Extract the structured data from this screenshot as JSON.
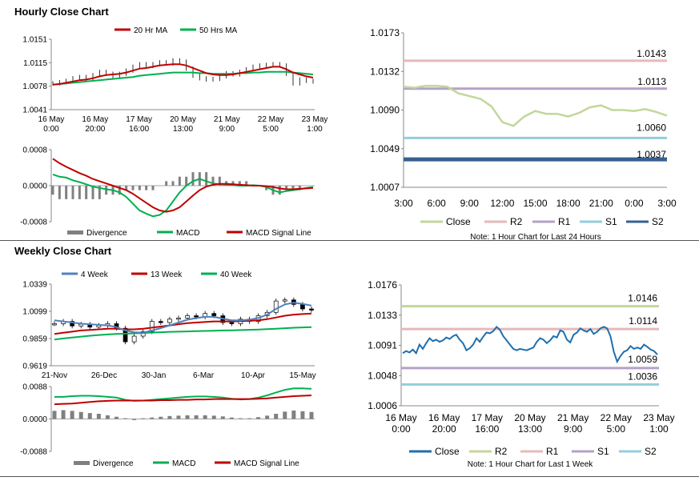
{
  "titles": {
    "hourly": "Hourly Close Chart",
    "weekly": "Weekly Close Chart"
  },
  "colors": {
    "ma_red": "#c00000",
    "ma_green": "#00b050",
    "macd_green": "#00b050",
    "signal_red": "#c00000",
    "divergence": "#808080",
    "close_light": "#c3d69b",
    "close_blue": "#1f6fad",
    "r2_pink": "#e6b9b8",
    "r1_purple": "#b3a2c7",
    "s1_cyan": "#93cddd",
    "s2_blue": "#376092",
    "w_4week": "#4f81bd",
    "w_13week": "#c00000",
    "w_40week": "#00b050"
  },
  "chart_data": [
    {
      "id": "hourly_price",
      "type": "candlestick",
      "legend": [
        "20 Hr MA",
        "50 Hrs MA"
      ],
      "legend_placement": "top",
      "y_ticks": [
        "1.0151",
        "1.0115",
        "1.0078",
        "1.0041"
      ],
      "ylim": [
        1.0041,
        1.0151
      ],
      "x_labels": [
        [
          "16 May",
          "0:00"
        ],
        [
          "16 May",
          "20:00"
        ],
        [
          "17 May",
          "16:00"
        ],
        [
          "20 May",
          "13:00"
        ],
        [
          "21 May",
          "9:00"
        ],
        [
          "22 May",
          "5:00"
        ],
        [
          "23 May",
          "1:00"
        ]
      ],
      "close": [
        1.0082,
        1.0084,
        1.0086,
        1.009,
        1.0092,
        1.0089,
        1.0095,
        1.01,
        1.0097,
        1.0093,
        1.0097,
        1.0102,
        1.0108,
        1.0112,
        1.0109,
        1.0112,
        1.0115,
        1.0113,
        1.0118,
        1.0116,
        1.0105,
        1.0094,
        1.009,
        1.0088,
        1.0089,
        1.0093,
        1.0098,
        1.0096,
        1.01,
        1.0104,
        1.0108,
        1.011,
        1.0111,
        1.0112,
        1.011,
        1.0097,
        1.0082,
        1.0088,
        1.0086,
        1.0085
      ],
      "ma20": [
        1.008,
        1.0081,
        1.0083,
        1.0085,
        1.0087,
        1.0088,
        1.009,
        1.0093,
        1.0095,
        1.0096,
        1.0097,
        1.0099,
        1.0102,
        1.0105,
        1.0106,
        1.0108,
        1.011,
        1.0111,
        1.0112,
        1.0112,
        1.011,
        1.0106,
        1.0102,
        1.0098,
        1.0096,
        1.0095,
        1.0095,
        1.0096,
        1.0098,
        1.01,
        1.0102,
        1.0104,
        1.0106,
        1.0108,
        1.0108,
        1.0104,
        1.0099,
        1.0096,
        1.0093,
        1.0091
      ],
      "ma50": [
        1.008,
        1.0081,
        1.0082,
        1.0083,
        1.0084,
        1.0085,
        1.0086,
        1.0087,
        1.0088,
        1.0089,
        1.009,
        1.0091,
        1.0092,
        1.0094,
        1.0095,
        1.0096,
        1.0097,
        1.0098,
        1.0099,
        1.0099,
        1.0099,
        1.0099,
        1.0098,
        1.0098,
        1.0097,
        1.0097,
        1.0097,
        1.0097,
        1.0098,
        1.0098,
        1.0099,
        1.0099,
        1.01,
        1.01,
        1.01,
        1.01,
        1.0099,
        1.0098,
        1.0097,
        1.0096
      ]
    },
    {
      "id": "hourly_macd",
      "type": "line",
      "legend": [
        "Divergence",
        "MACD",
        "MACD Signal Line"
      ],
      "legend_placement": "bottom",
      "y_ticks": [
        "0.0008",
        "0.0000",
        "-0.0008"
      ],
      "ylim": [
        -0.0008,
        0.0008
      ],
      "divergence": [
        -0.0002,
        -0.0003,
        -0.0003,
        -0.0003,
        -0.0003,
        -0.0003,
        -0.0003,
        -0.0003,
        -0.0002,
        -0.0002,
        -0.0002,
        -0.0001,
        -0.0001,
        -0.0001,
        -0.0001,
        -0.0001,
        0.0,
        0.0001,
        0.0001,
        0.0002,
        0.0002,
        0.0003,
        0.0003,
        0.0003,
        0.0002,
        0.0002,
        0.0001,
        0.0001,
        0.0001,
        0.0001,
        0.0,
        0.0,
        -0.0001,
        -0.0002,
        -0.0002,
        -0.0001,
        -0.0001,
        -0.0001,
        0.0,
        0.0
      ],
      "macd": [
        0.00025,
        0.0002,
        0.00018,
        0.00012,
        8e-05,
        3e-05,
        -2e-05,
        -5e-05,
        -8e-05,
        -0.0001,
        -0.00015,
        -0.00025,
        -0.0004,
        -0.00055,
        -0.00062,
        -0.00068,
        -0.00065,
        -0.00055,
        -0.00035,
        -0.00015,
        0.0,
        0.0001,
        0.00015,
        0.0001,
        5e-05,
        3e-05,
        2e-05,
        1e-05,
        0.0,
        0.0,
        1e-05,
        0.0,
        -3e-05,
        -0.0001,
        -0.00015,
        -0.00012,
        -0.0001,
        -8e-05,
        -5e-05,
        -3e-05
      ],
      "signal": [
        0.0006,
        0.0005,
        0.00042,
        0.00035,
        0.00028,
        0.00022,
        0.00015,
        0.0001,
        5e-05,
        0.0,
        -5e-05,
        -0.0001,
        -0.00018,
        -0.00028,
        -0.00038,
        -0.00048,
        -0.00055,
        -0.00058,
        -0.00055,
        -0.00048,
        -0.00035,
        -0.00022,
        -0.0001,
        -2e-05,
        2e-05,
        4e-05,
        4e-05,
        3e-05,
        2e-05,
        1e-05,
        0.0,
        0.0,
        -1e-05,
        -3e-05,
        -6e-05,
        -8e-05,
        -8e-05,
        -7e-05,
        -6e-05,
        -5e-05
      ]
    },
    {
      "id": "hourly_24h",
      "type": "line",
      "legend": [
        "Close",
        "R2",
        "R1",
        "S1",
        "S2"
      ],
      "legend_placement": "bottom",
      "note": "Note: 1 Hour Chart for Last 24 Hours",
      "y_ticks": [
        "1.0173",
        "1.0132",
        "1.0090",
        "1.0049",
        "1.0007"
      ],
      "ylim": [
        1.0007,
        1.0173
      ],
      "x_labels": [
        "3:00",
        "6:00",
        "9:00",
        "12:00",
        "15:00",
        "18:00",
        "21:00",
        "0:00",
        "3:00"
      ],
      "levels": {
        "R2": 1.0143,
        "R1": 1.0113,
        "S1": 1.006,
        "S2": 1.0037
      },
      "level_labels": [
        "1.0143",
        "1.0113",
        "1.0060",
        "1.0037"
      ],
      "close": [
        1.0115,
        1.0114,
        1.0116,
        1.0116,
        1.0115,
        1.0108,
        1.0105,
        1.0102,
        1.0094,
        1.0077,
        1.0073,
        1.0083,
        1.0089,
        1.0086,
        1.0086,
        1.0083,
        1.0087,
        1.0093,
        1.0095,
        1.009,
        1.009,
        1.0089,
        1.0091,
        1.0088,
        1.0084
      ]
    },
    {
      "id": "weekly_price",
      "type": "candlestick",
      "legend": [
        "4 Week",
        "13 Week",
        "40 Week"
      ],
      "legend_placement": "top",
      "y_ticks": [
        "1.0339",
        "1.0099",
        "0.9859",
        "0.9619"
      ],
      "ylim": [
        0.9619,
        1.0339
      ],
      "x_labels": [
        "21-Nov",
        "26-Dec",
        "30-Jan",
        "6-Mar",
        "10-Apr",
        "15-May"
      ],
      "close": [
        0.999,
        1.001,
        0.997,
        0.9985,
        0.996,
        0.9975,
        0.999,
        0.995,
        0.983,
        0.988,
        0.992,
        1.001,
        1.0,
        1.003,
        1.004,
        1.006,
        1.005,
        1.008,
        1.006,
        1.0,
        0.999,
        1.003,
        1.001,
        1.006,
        1.009,
        1.019,
        1.02,
        1.016,
        1.012,
        1.011
      ],
      "w4": [
        1.002,
        1.001,
        1.0,
        0.999,
        0.9985,
        0.998,
        0.9975,
        0.996,
        0.993,
        0.9915,
        0.991,
        0.993,
        0.995,
        0.9975,
        1.0,
        1.0025,
        1.004,
        1.005,
        1.005,
        1.0035,
        1.002,
        1.002,
        1.0025,
        1.004,
        1.007,
        1.012,
        1.016,
        1.0175,
        1.0165,
        1.015
      ],
      "w13": [
        0.99,
        0.991,
        0.992,
        0.993,
        0.9935,
        0.994,
        0.9945,
        0.9945,
        0.994,
        0.994,
        0.9945,
        0.9955,
        0.9965,
        0.9975,
        0.9985,
        0.9995,
        1.0,
        1.0005,
        1.001,
        1.001,
        1.001,
        1.0012,
        1.0015,
        1.002,
        1.003,
        1.0045,
        1.006,
        1.007,
        1.0075,
        1.008
      ],
      "w40": [
        0.985,
        0.986,
        0.9868,
        0.9876,
        0.9884,
        0.989,
        0.9895,
        0.99,
        0.9902,
        0.9905,
        0.9908,
        0.9912,
        0.9915,
        0.9918,
        0.992,
        0.9922,
        0.9924,
        0.9926,
        0.9928,
        0.993,
        0.9932,
        0.9934,
        0.9936,
        0.9938,
        0.9942,
        0.9946,
        0.995,
        0.9954,
        0.9957,
        0.996
      ]
    },
    {
      "id": "weekly_macd",
      "type": "line",
      "legend": [
        "Divergence",
        "MACD",
        "MACD Signal Line"
      ],
      "legend_placement": "bottom",
      "y_ticks": [
        "0.0088",
        "0.0000",
        "-0.0088"
      ],
      "ylim": [
        -0.0088,
        0.0088
      ],
      "divergence": [
        0.0022,
        0.0024,
        0.0022,
        0.0019,
        0.0016,
        0.0014,
        0.001,
        0.0006,
        0.0002,
        -0.0003,
        0.0002,
        0.0004,
        0.0006,
        0.0008,
        0.0009,
        0.001,
        0.001,
        0.001,
        0.0009,
        0.0007,
        0.0004,
        0.0002,
        0.0002,
        0.0005,
        0.0009,
        0.0014,
        0.002,
        0.0023,
        0.0021,
        0.0019
      ],
      "macd": [
        0.006,
        0.006,
        0.0062,
        0.0063,
        0.0063,
        0.0062,
        0.006,
        0.0058,
        0.0052,
        0.0049,
        0.005,
        0.0052,
        0.0054,
        0.0056,
        0.0058,
        0.006,
        0.0061,
        0.0061,
        0.006,
        0.0058,
        0.0055,
        0.0053,
        0.0054,
        0.0058,
        0.0064,
        0.0072,
        0.0079,
        0.0083,
        0.0083,
        0.0082
      ],
      "signal": [
        0.004,
        0.0041,
        0.0042,
        0.0044,
        0.0046,
        0.0048,
        0.0049,
        0.005,
        0.005,
        0.005,
        0.005,
        0.005,
        0.0051,
        0.0051,
        0.0052,
        0.0052,
        0.0053,
        0.0053,
        0.0054,
        0.0054,
        0.0054,
        0.0054,
        0.0054,
        0.0055,
        0.0056,
        0.0058,
        0.006,
        0.0062,
        0.0063,
        0.0064
      ]
    },
    {
      "id": "weekly_1w",
      "type": "line",
      "legend": [
        "Close",
        "R2",
        "R1",
        "S1",
        "S2"
      ],
      "legend_placement": "bottom",
      "note": "Note: 1 Hour Chart for Last 1 Week",
      "y_ticks": [
        "1.0176",
        "1.0133",
        "1.0091",
        "1.0048",
        "1.0006"
      ],
      "ylim": [
        1.0006,
        1.0176
      ],
      "x_labels": [
        [
          "16 May",
          "0:00"
        ],
        [
          "16 May",
          "20:00"
        ],
        [
          "17 May",
          "16:00"
        ],
        [
          "20 May",
          "13:00"
        ],
        [
          "21 May",
          "9:00"
        ],
        [
          "22 May",
          "5:00"
        ],
        [
          "23 May",
          "1:00"
        ]
      ],
      "levels": {
        "R2": 1.0146,
        "R1": 1.0114,
        "S1": 1.0059,
        "S2": 1.0036
      },
      "level_labels": [
        "1.0146",
        "1.0114",
        "1.0059",
        "1.0036"
      ],
      "close": [
        1.008,
        1.0083,
        1.0081,
        1.0085,
        1.008,
        1.0092,
        1.0086,
        1.0094,
        1.0101,
        1.0097,
        1.0099,
        1.0096,
        1.0098,
        1.0102,
        1.01,
        1.0104,
        1.0106,
        1.0099,
        1.0094,
        1.0084,
        1.0087,
        1.0092,
        1.0101,
        1.0096,
        1.0103,
        1.0109,
        1.0108,
        1.0111,
        1.0117,
        1.0113,
        1.0104,
        1.0098,
        1.0092,
        1.0086,
        1.0084,
        1.0086,
        1.0085,
        1.0084,
        1.0086,
        1.0088,
        1.0096,
        1.0101,
        1.0099,
        1.0094,
        1.0098,
        1.0104,
        1.0102,
        1.0112,
        1.011,
        1.0099,
        1.0095,
        1.0106,
        1.0109,
        1.0115,
        1.0112,
        1.011,
        1.0114,
        1.0107,
        1.011,
        1.0115,
        1.0117,
        1.0115,
        1.0104,
        1.0082,
        1.0068,
        1.0076,
        1.0082,
        1.0084,
        1.009,
        1.0086,
        1.0088,
        1.0086,
        1.0092,
        1.0089,
        1.0085,
        1.0083,
        1.0078
      ]
    }
  ]
}
